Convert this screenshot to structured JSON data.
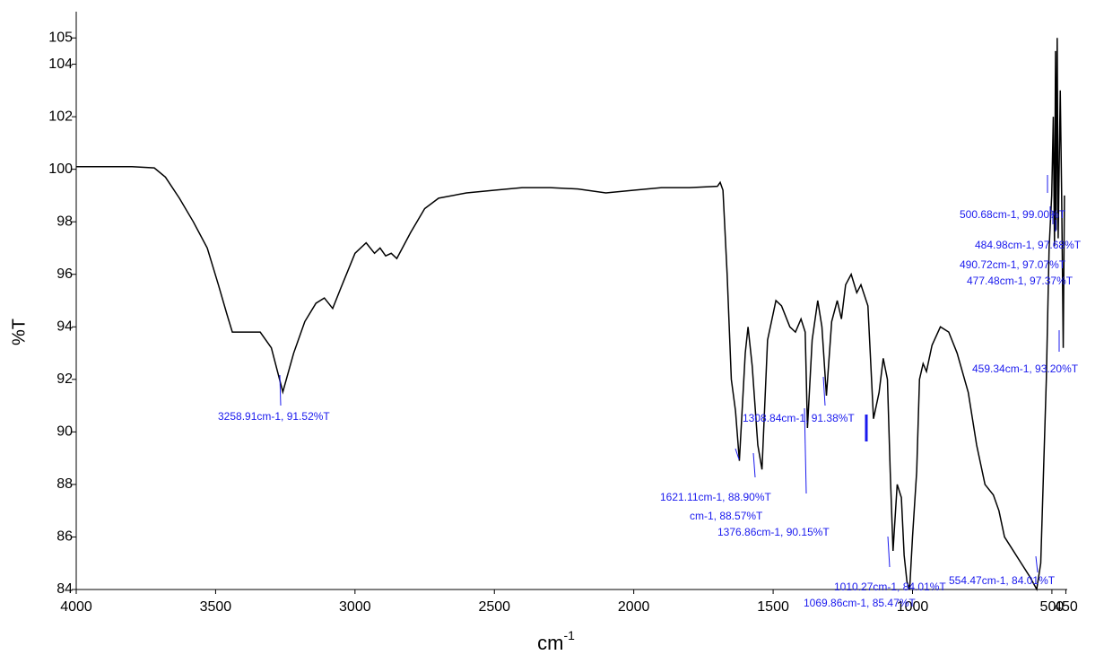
{
  "chart_data": {
    "type": "line",
    "ylabel": "%T",
    "xlabel": "cm",
    "xlabel_sup": "-1",
    "xlim": [
      4000,
      445
    ],
    "ylim": [
      84,
      106
    ],
    "xticks": [
      4000,
      3500,
      3000,
      2500,
      2000,
      1500,
      1000,
      500,
      450
    ],
    "yticks": [
      84,
      86,
      88,
      90,
      92,
      94,
      96,
      98,
      100,
      102,
      104,
      105
    ],
    "color": "#000000",
    "x": [
      4000,
      3900,
      3800,
      3720,
      3680,
      3630,
      3580,
      3530,
      3490,
      3460,
      3440,
      3400,
      3340,
      3300,
      3258.91,
      3220,
      3180,
      3140,
      3110,
      3080,
      3050,
      3000,
      2960,
      2930,
      2910,
      2890,
      2870,
      2850,
      2800,
      2750,
      2700,
      2600,
      2500,
      2400,
      2300,
      2200,
      2100,
      2000,
      1900,
      1800,
      1700,
      1690,
      1680,
      1665,
      1650,
      1635,
      1621.11,
      1600,
      1590,
      1575,
      1555,
      1540,
      1520,
      1490,
      1470,
      1440,
      1420,
      1400,
      1385,
      1376.86,
      1360,
      1340,
      1325,
      1308.84,
      1290,
      1270,
      1255,
      1240,
      1220,
      1200,
      1185,
      1160,
      1140,
      1120,
      1105,
      1090,
      1080,
      1069.86,
      1055,
      1040,
      1030,
      1020,
      1010.27,
      1000,
      985,
      975,
      962,
      950,
      930,
      900,
      870,
      840,
      800,
      770,
      740,
      710,
      690,
      670,
      640,
      610,
      580,
      554.47,
      540,
      520,
      510,
      500.68,
      495,
      490.72,
      487,
      484.98,
      481,
      477.48,
      470,
      465,
      459.34,
      455
    ],
    "values": [
      100.1,
      100.1,
      100.1,
      100.05,
      99.7,
      98.9,
      98.0,
      97.0,
      95.6,
      94.5,
      93.8,
      93.8,
      93.8,
      93.2,
      91.52,
      93.0,
      94.2,
      94.9,
      95.1,
      94.7,
      95.5,
      96.8,
      97.2,
      96.8,
      97.0,
      96.7,
      96.8,
      96.6,
      97.6,
      98.5,
      98.9,
      99.1,
      99.2,
      99.3,
      99.3,
      99.25,
      99.1,
      99.2,
      99.3,
      99.3,
      99.35,
      99.5,
      99.2,
      96,
      92,
      90.8,
      88.9,
      93,
      94,
      92.5,
      89.5,
      88.57,
      93.5,
      95,
      94.8,
      94,
      93.8,
      94.3,
      93.8,
      90.15,
      93.5,
      95,
      94,
      91.38,
      94.2,
      95,
      94.3,
      95.6,
      96,
      95.3,
      95.6,
      94.8,
      90.5,
      91.5,
      92.8,
      92,
      88.5,
      85.47,
      88,
      87.5,
      85.3,
      84.3,
      84.01,
      86,
      88.5,
      92,
      92.6,
      92.3,
      93.3,
      94,
      93.8,
      93,
      91.5,
      89.5,
      88,
      87.6,
      87,
      86,
      85.5,
      85,
      84.5,
      84.01,
      85,
      92,
      97,
      99,
      102,
      97.07,
      104.5,
      97.68,
      105,
      97.37,
      103,
      99,
      93.2,
      99
    ],
    "annotation_color": "#1a1aee",
    "annotations": [
      "3258.91cm-1, 91.52%T",
      "1308.84cm-1, 91.38%T",
      "1621.11cm-1, 88.90%T",
      "cm-1, 88.57%T",
      "1376.86cm-1, 90.15%T",
      "1010.27cm-1, 84.01%T",
      "1069.86cm-1, 85.47%T",
      "554.47cm-1, 84.01%T",
      "500.68cm-1, 99.00%T",
      "484.98cm-1, 97.68%T",
      "490.72cm-1, 97.07%T",
      "477.48cm-1, 97.37%T",
      "459.34cm-1, 93.20%T"
    ]
  }
}
